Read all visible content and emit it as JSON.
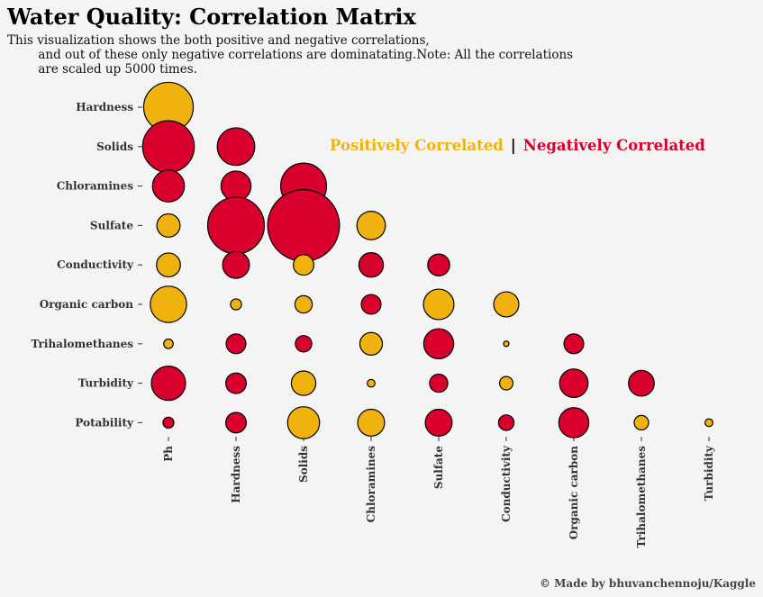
{
  "title": "Water Quality: Correlation Matrix",
  "subtitle": {
    "line1": "This visualization shows the both positive and negative correlations,",
    "line2": "        and out of these only negative correlations are dominatating.Note: All the correlations",
    "line3": "        are scaled up 5000 times."
  },
  "legend": {
    "positive": "Positively Correlated",
    "separator": "|",
    "negative": "Negatively Correlated"
  },
  "credit": "© Made by bhuvanchennoju/Kaggle",
  "colors": {
    "positive": "#f0b20e",
    "negative": "#d8002c",
    "background": "#f4f4f4"
  },
  "chart_data": {
    "type": "scatter",
    "title": "Water Quality: Correlation Matrix",
    "note": "correlations scaled up 5000 times; marker size = |correlation|, color = sign",
    "x_categories": [
      "Ph",
      "Hardness",
      "Solids",
      "Chloramines",
      "Sulfate",
      "Conductivity",
      "Organic carbon",
      "Trihalomethanes",
      "Turbidity"
    ],
    "y_categories": [
      "Hardness",
      "Solids",
      "Chloramines",
      "Sulfate",
      "Conductivity",
      "Organic carbon",
      "Trihalomethanes",
      "Turbidity",
      "Potability"
    ],
    "points": [
      {
        "x": "Ph",
        "y": "Hardness",
        "corr": 0.082
      },
      {
        "x": "Ph",
        "y": "Solids",
        "corr": -0.089
      },
      {
        "x": "Ph",
        "y": "Chloramines",
        "corr": -0.034
      },
      {
        "x": "Ph",
        "y": "Sulfate",
        "corr": 0.018
      },
      {
        "x": "Ph",
        "y": "Conductivity",
        "corr": 0.019
      },
      {
        "x": "Ph",
        "y": "Organic carbon",
        "corr": 0.044
      },
      {
        "x": "Ph",
        "y": "Trihalomethanes",
        "corr": 0.003
      },
      {
        "x": "Ph",
        "y": "Turbidity",
        "corr": -0.039
      },
      {
        "x": "Ph",
        "y": "Potability",
        "corr": -0.004
      },
      {
        "x": "Hardness",
        "y": "Solids",
        "corr": -0.047
      },
      {
        "x": "Hardness",
        "y": "Chloramines",
        "corr": -0.03
      },
      {
        "x": "Hardness",
        "y": "Sulfate",
        "corr": -0.107
      },
      {
        "x": "Hardness",
        "y": "Conductivity",
        "corr": -0.024
      },
      {
        "x": "Hardness",
        "y": "Organic carbon",
        "corr": 0.004
      },
      {
        "x": "Hardness",
        "y": "Trihalomethanes",
        "corr": -0.013
      },
      {
        "x": "Hardness",
        "y": "Turbidity",
        "corr": -0.014
      },
      {
        "x": "Hardness",
        "y": "Potability",
        "corr": -0.014
      },
      {
        "x": "Solids",
        "y": "Chloramines",
        "corr": -0.07
      },
      {
        "x": "Solids",
        "y": "Sulfate",
        "corr": -0.172
      },
      {
        "x": "Solids",
        "y": "Conductivity",
        "corr": 0.014
      },
      {
        "x": "Solids",
        "y": "Organic carbon",
        "corr": 0.01
      },
      {
        "x": "Solids",
        "y": "Trihalomethanes",
        "corr": -0.009
      },
      {
        "x": "Solids",
        "y": "Turbidity",
        "corr": 0.02
      },
      {
        "x": "Solids",
        "y": "Potability",
        "corr": 0.034
      },
      {
        "x": "Chloramines",
        "y": "Sulfate",
        "corr": 0.027
      },
      {
        "x": "Chloramines",
        "y": "Conductivity",
        "corr": -0.02
      },
      {
        "x": "Chloramines",
        "y": "Organic carbon",
        "corr": -0.013
      },
      {
        "x": "Chloramines",
        "y": "Trihalomethanes",
        "corr": 0.017
      },
      {
        "x": "Chloramines",
        "y": "Turbidity",
        "corr": 0.002
      },
      {
        "x": "Chloramines",
        "y": "Potability",
        "corr": 0.024
      },
      {
        "x": "Sulfate",
        "y": "Conductivity",
        "corr": -0.016
      },
      {
        "x": "Sulfate",
        "y": "Organic carbon",
        "corr": 0.031
      },
      {
        "x": "Sulfate",
        "y": "Trihalomethanes",
        "corr": -0.03
      },
      {
        "x": "Sulfate",
        "y": "Turbidity",
        "corr": -0.011
      },
      {
        "x": "Sulfate",
        "y": "Potability",
        "corr": -0.024
      },
      {
        "x": "Conductivity",
        "y": "Organic carbon",
        "corr": 0.021
      },
      {
        "x": "Conductivity",
        "y": "Trihalomethanes",
        "corr": 0.001
      },
      {
        "x": "Conductivity",
        "y": "Turbidity",
        "corr": 0.006
      },
      {
        "x": "Conductivity",
        "y": "Potability",
        "corr": -0.008
      },
      {
        "x": "Organic carbon",
        "y": "Trihalomethanes",
        "corr": -0.013
      },
      {
        "x": "Organic carbon",
        "y": "Turbidity",
        "corr": -0.027
      },
      {
        "x": "Organic carbon",
        "y": "Potability",
        "corr": -0.03
      },
      {
        "x": "Trihalomethanes",
        "y": "Turbidity",
        "corr": -0.022
      },
      {
        "x": "Trihalomethanes",
        "y": "Potability",
        "corr": 0.007
      },
      {
        "x": "Turbidity",
        "y": "Potability",
        "corr": 0.002
      }
    ]
  }
}
